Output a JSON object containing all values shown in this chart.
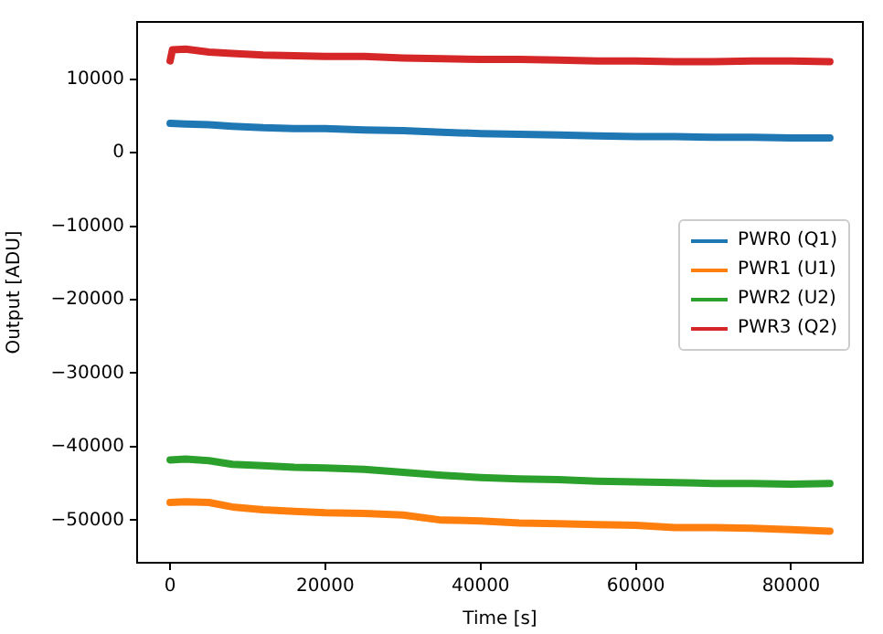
{
  "chart_data": {
    "type": "line",
    "xlabel": "Time [s]",
    "ylabel": "Output [ADU]",
    "xlim": [
      -4250,
      89250
    ],
    "xticks": [
      0,
      20000,
      40000,
      60000,
      80000
    ],
    "ylim": [
      -55800,
      17800
    ],
    "yticks": [
      -50000,
      -40000,
      -30000,
      -20000,
      -10000,
      0,
      10000
    ],
    "grid": false,
    "legend": "right",
    "marker": "none",
    "line_style": "solid",
    "series": [
      {
        "name": "PWR0 (Q1)",
        "color": "#1f77b4",
        "x": [
          0,
          2000,
          5000,
          8000,
          12000,
          16000,
          20000,
          25000,
          30000,
          35000,
          40000,
          45000,
          50000,
          55000,
          60000,
          65000,
          70000,
          75000,
          80000,
          85000
        ],
        "values": [
          4000,
          3900,
          3800,
          3600,
          3400,
          3300,
          3300,
          3100,
          3000,
          2800,
          2600,
          2500,
          2400,
          2300,
          2200,
          2200,
          2100,
          2100,
          2000,
          2000
        ]
      },
      {
        "name": "PWR1 (U1)",
        "color": "#ff7f0e",
        "x": [
          0,
          2000,
          5000,
          8000,
          12000,
          16000,
          20000,
          25000,
          30000,
          35000,
          40000,
          45000,
          50000,
          55000,
          60000,
          65000,
          70000,
          75000,
          80000,
          85000
        ],
        "values": [
          -47600,
          -47500,
          -47600,
          -48200,
          -48600,
          -48800,
          -49000,
          -49100,
          -49300,
          -50000,
          -50100,
          -50400,
          -50500,
          -50600,
          -50700,
          -51000,
          -51000,
          -51100,
          -51300,
          -51500
        ]
      },
      {
        "name": "PWR2 (U2)",
        "color": "#2ca02c",
        "x": [
          0,
          2000,
          5000,
          8000,
          12000,
          16000,
          20000,
          25000,
          30000,
          35000,
          40000,
          45000,
          50000,
          55000,
          60000,
          65000,
          70000,
          75000,
          80000,
          85000
        ],
        "values": [
          -41800,
          -41700,
          -41900,
          -42400,
          -42600,
          -42800,
          -42900,
          -43100,
          -43500,
          -43900,
          -44200,
          -44400,
          -44500,
          -44700,
          -44800,
          -44900,
          -45000,
          -45000,
          -45100,
          -45000
        ]
      },
      {
        "name": "PWR3 (Q2)",
        "color": "#d62728",
        "x": [
          0,
          300,
          2000,
          5000,
          8000,
          12000,
          16000,
          20000,
          25000,
          30000,
          35000,
          40000,
          45000,
          50000,
          55000,
          60000,
          65000,
          70000,
          75000,
          80000,
          85000
        ],
        "values": [
          12500,
          14000,
          14100,
          13700,
          13500,
          13300,
          13200,
          13100,
          13100,
          12900,
          12800,
          12700,
          12700,
          12600,
          12500,
          12500,
          12400,
          12400,
          12500,
          12500,
          12400
        ]
      }
    ]
  }
}
